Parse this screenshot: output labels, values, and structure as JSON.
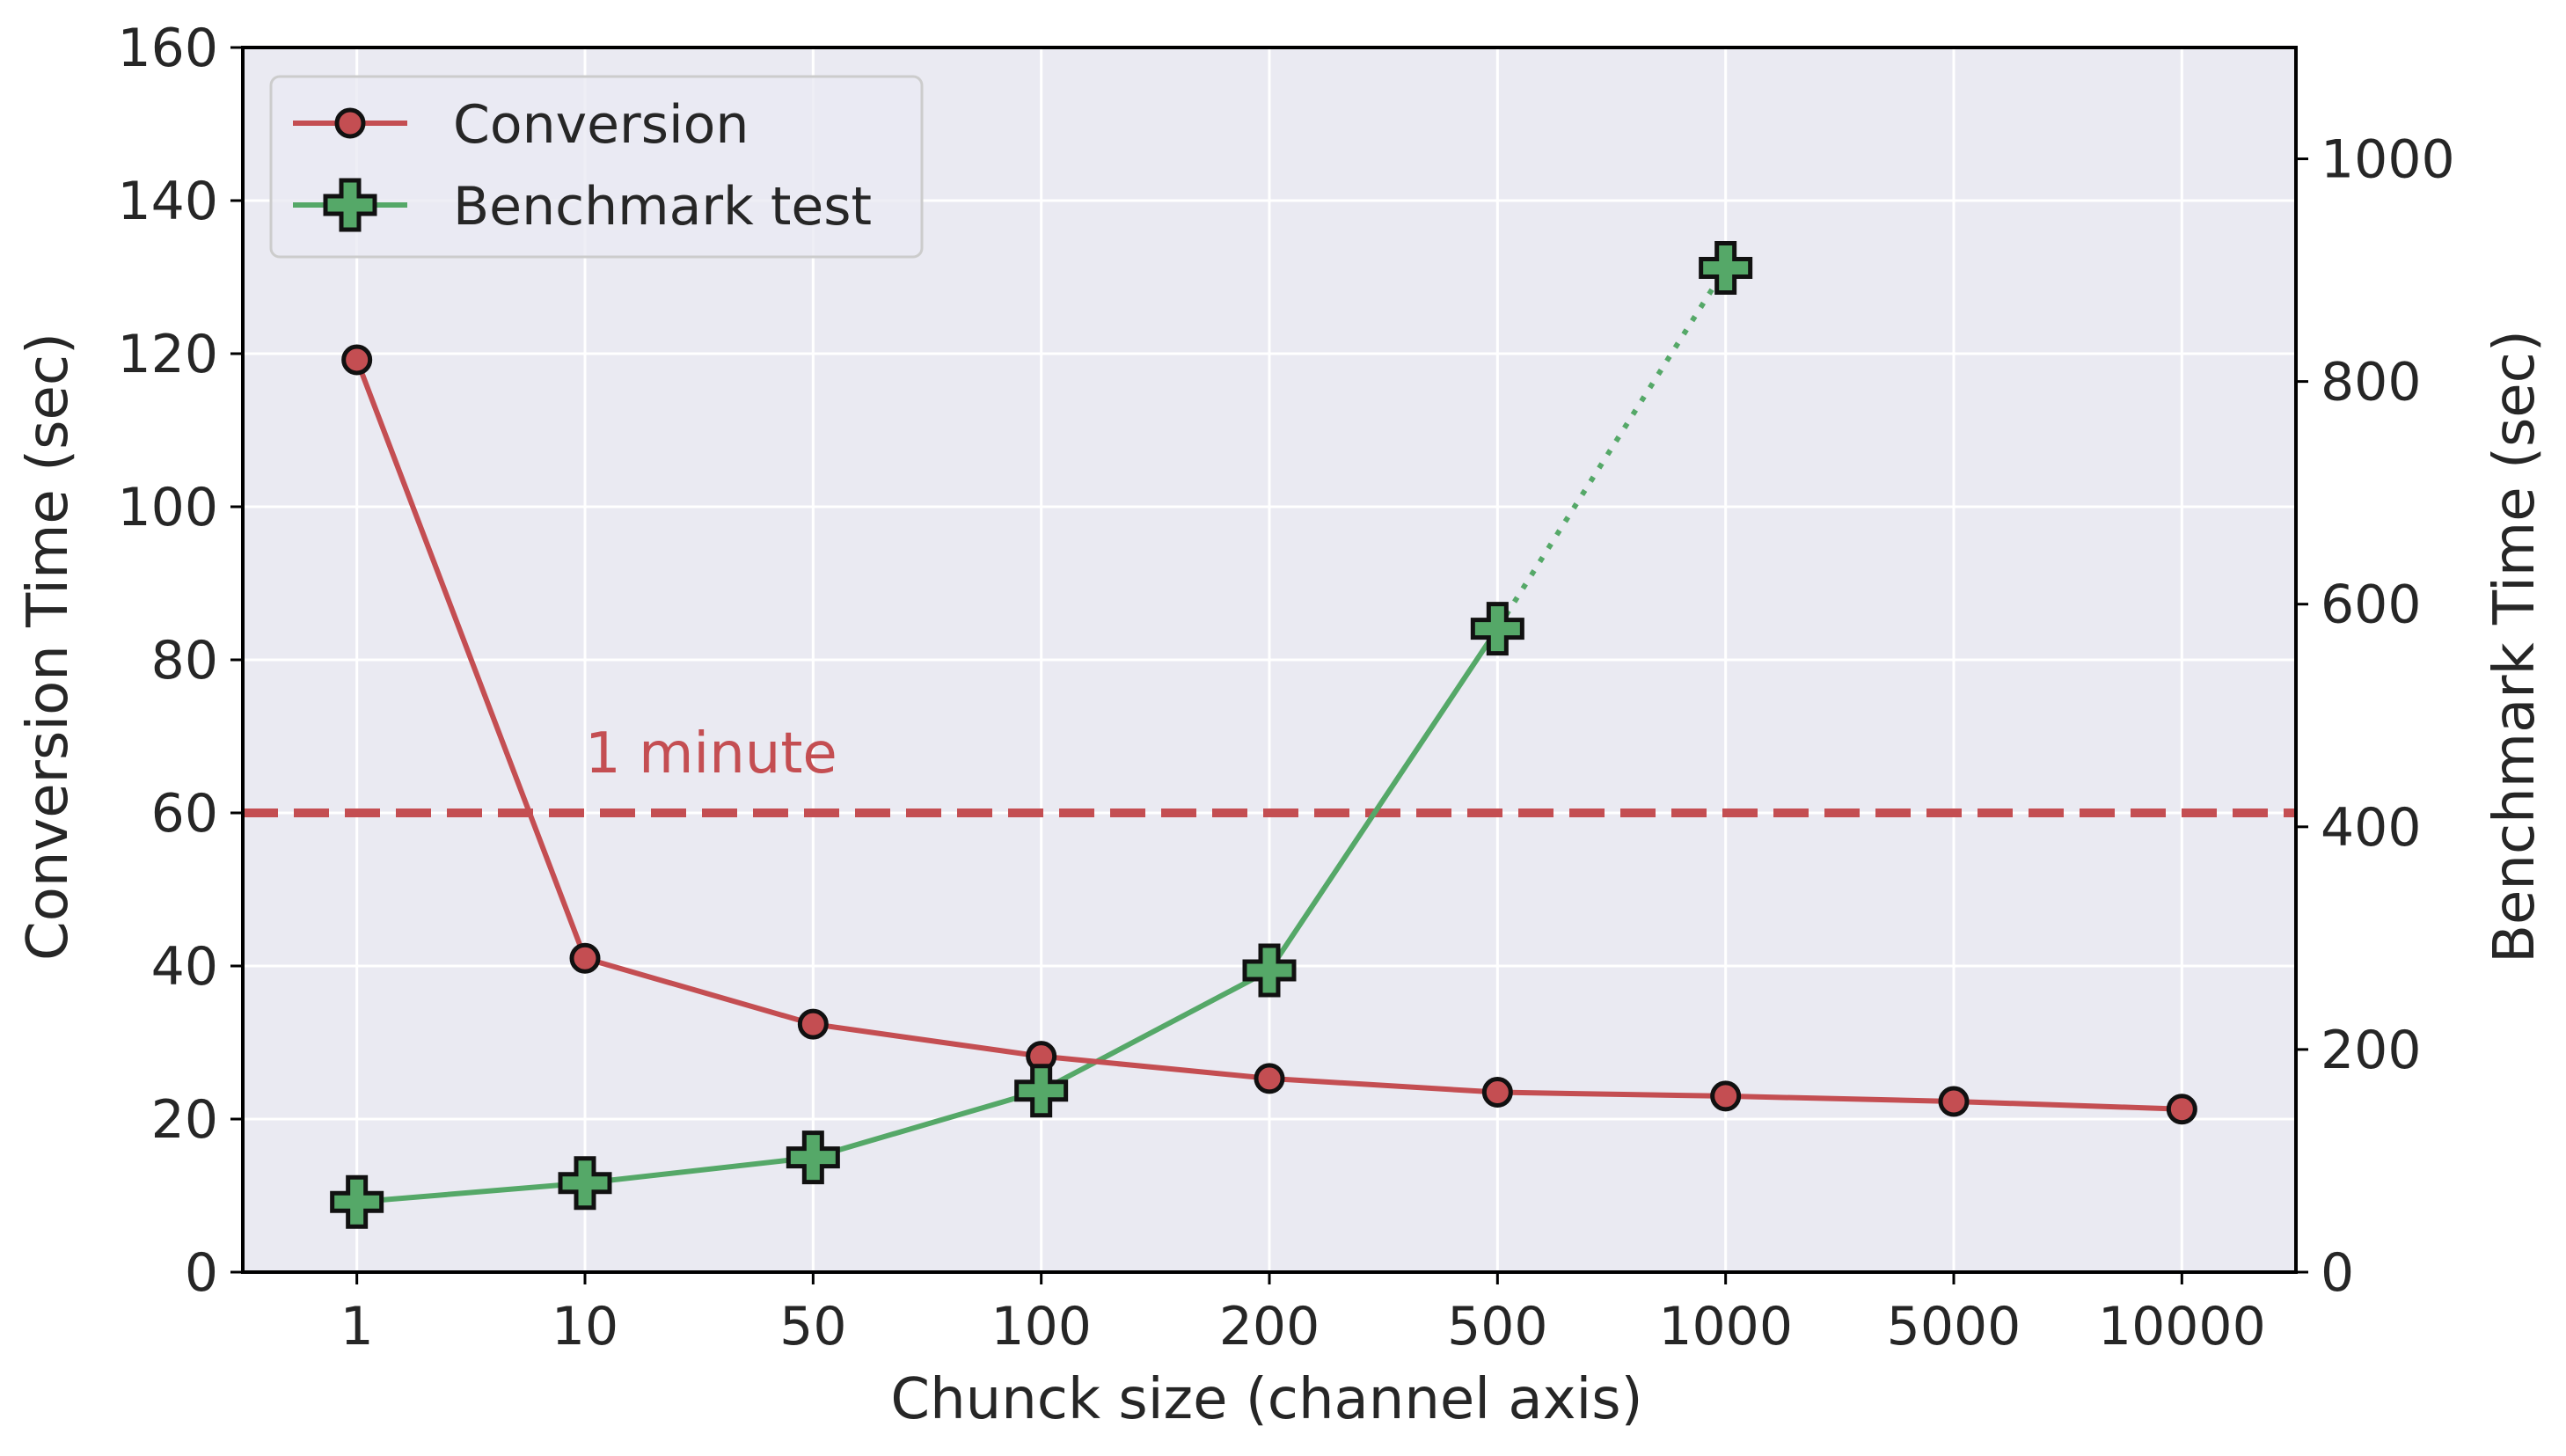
{
  "chart_data": {
    "type": "line",
    "categories": [
      "1",
      "10",
      "50",
      "100",
      "200",
      "500",
      "1000",
      "5000",
      "10000"
    ],
    "xlabel": "Chunck size (channel axis)",
    "ylabel_left": "Conversion Time (sec)",
    "ylabel_right": "Benchmark Time (sec)",
    "ylim_left": [
      0,
      160
    ],
    "ylim_right": [
      0,
      1100
    ],
    "yticks_left": [
      0,
      20,
      40,
      60,
      80,
      100,
      120,
      140,
      160
    ],
    "yticks_right": [
      0,
      200,
      400,
      600,
      800,
      1000
    ],
    "grid": true,
    "legend_position": "top-left",
    "series": [
      {
        "name": "Conversion",
        "axis": "left",
        "color": "#c44e52",
        "marker": "circle",
        "values": [
          119.2,
          41.0,
          32.4,
          28.2,
          25.3,
          23.5,
          23.0,
          22.3,
          21.3
        ]
      },
      {
        "name": "Benchmark test",
        "axis": "right",
        "color": "#55a868",
        "marker": "plus",
        "values": [
          63,
          80,
          103,
          163,
          271,
          578,
          902,
          null,
          null
        ],
        "dotted_from_index": 5
      }
    ],
    "reference_line": {
      "axis": "left",
      "value": 60,
      "label": "1 minute",
      "color": "#c44e52",
      "style": "dashed"
    }
  },
  "colors": {
    "plot_background": "#eaeaf2",
    "grid": "#ffffff",
    "axis": "#000000",
    "marker_edge": "#111111"
  }
}
